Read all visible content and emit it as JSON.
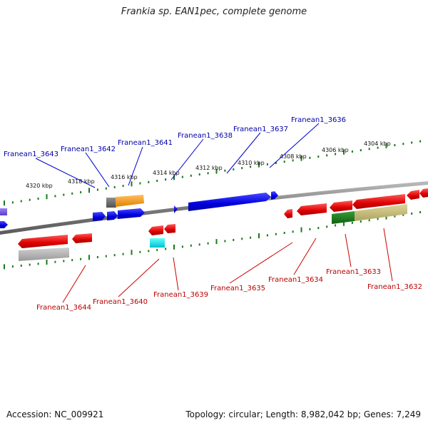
{
  "title": "Frankia sp. EAN1pec, complete genome",
  "footer": {
    "accession": "Accession: NC_009921",
    "stats": "Topology: circular; Length: 8,982,042 bp; Genes: 7,249"
  },
  "scale_labels": [
    "4320 kbp",
    "4318 kbp",
    "4316 kbp",
    "4314 kbp",
    "4312 kbp",
    "4310 kbp",
    "4308 kbp",
    "4306 kbp",
    "4304 kbp"
  ],
  "genes_top": [
    "Franean1_3643",
    "Franean1_3642",
    "Franean1_3641",
    "Franean1_3638",
    "Franean1_3637",
    "Franean1_3636"
  ],
  "genes_bottom": [
    "Franean1_3644",
    "Franean1_3640",
    "Franean1_3639",
    "Franean1_3635",
    "Franean1_3634",
    "Franean1_3633",
    "Franean1_3632"
  ],
  "colors": {
    "forward": "#0000ee",
    "reverse": "#ee0000",
    "backbone": "#888888",
    "ticks": "#1a7a1a",
    "top_label": "#0000aa",
    "bottom_label": "#bb0000"
  }
}
